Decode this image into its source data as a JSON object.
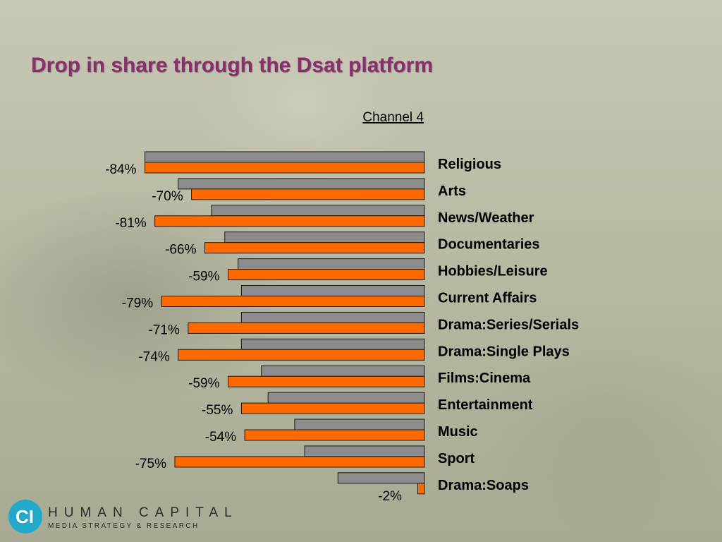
{
  "slide": {
    "title": "Drop in share through the Dsat platform"
  },
  "colors": {
    "title": "#8a2e6e",
    "bar_grey": "#8c8c8c",
    "bar_orange": "#ff6a00",
    "bar_outline": "#1a1a1a",
    "text": "#000000"
  },
  "chart_data": {
    "type": "bar",
    "orientation": "horizontal",
    "subtitle": "Channel 4",
    "categories": [
      "Religious",
      "Arts",
      "News/Weather",
      "Documentaries",
      "Hobbies/Leisure",
      "Current Affairs",
      "Drama:Series/Serials",
      "Drama:Single Plays",
      "Films:Cinema",
      "Entertainment",
      "Music",
      "Sport",
      "Drama:Soaps"
    ],
    "series": [
      {
        "color": "#8c8c8c",
        "values": [
          -84,
          -74,
          -64,
          -60,
          -56,
          -55,
          -55,
          -55,
          -49,
          -47,
          -39,
          -36,
          -26
        ]
      },
      {
        "color": "#ff6a00",
        "values": [
          -84,
          -70,
          -81,
          -66,
          -59,
          -79,
          -71,
          -74,
          -59,
          -55,
          -54,
          -75,
          -2
        ]
      }
    ],
    "data_labels": [
      "-84%",
      "-70%",
      "-81%",
      "-66%",
      "-59%",
      "-79%",
      "-71%",
      "-74%",
      "-59%",
      "-55%",
      "-54%",
      "-75%",
      "-2%"
    ],
    "xlim": [
      -100,
      0
    ],
    "grid": false,
    "legend": "none"
  },
  "logo": {
    "glyph": "CI",
    "name": "HUMAN CAPITAL",
    "tagline": "MEDIA STRATEGY & RESEARCH"
  }
}
